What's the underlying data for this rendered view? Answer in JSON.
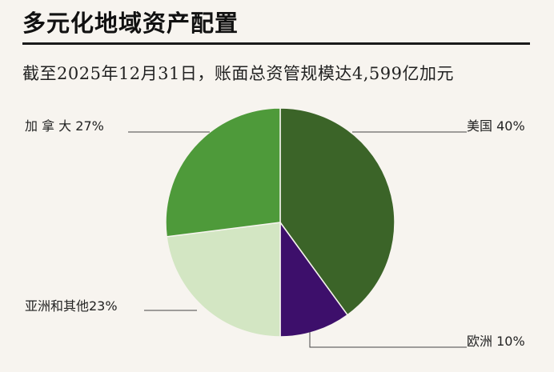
{
  "header": {
    "title": "多元化地域资产配置",
    "subtitle": "截至2025年12月31日，账面总资管规模达4,599亿加元"
  },
  "chart_data": {
    "type": "pie",
    "slices": [
      {
        "label": "美国 40%",
        "name": "美国",
        "value": 40,
        "color": "#3b6428"
      },
      {
        "label": "欧洲 10%",
        "name": "欧洲",
        "value": 10,
        "color": "#3d0f6b"
      },
      {
        "label": "亚洲和其他23%",
        "name": "亚洲和其他",
        "value": 23,
        "color": "#d3e6c3"
      },
      {
        "label": "加 拿 大 27%",
        "name": "加拿大",
        "value": 27,
        "color": "#4e9a3a"
      }
    ]
  }
}
